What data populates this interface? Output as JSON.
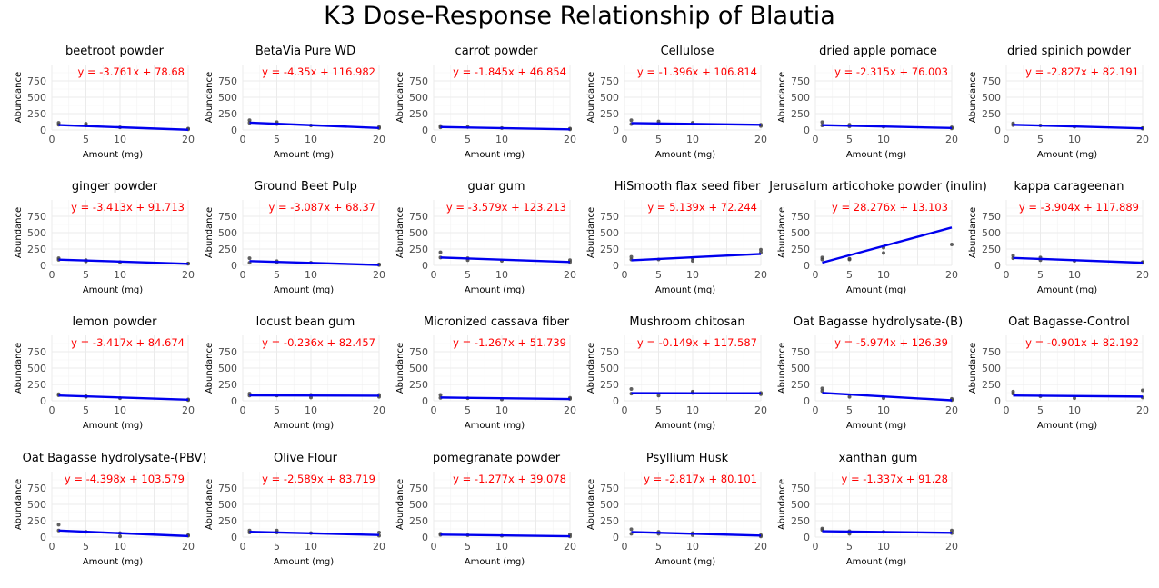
{
  "title": "K3 Dose-Response Relationship of Blautia",
  "chart_data": {
    "type": "scatter",
    "title": "K3 Dose-Response Relationship of Blautia",
    "xlabel": "Amount (mg)",
    "ylabel": "Abundance",
    "xlim": [
      0,
      20
    ],
    "ylim": [
      0,
      1000
    ],
    "xticks": [
      0,
      5,
      10,
      15,
      20
    ],
    "xtick_labels": [
      "0",
      "5",
      "10",
      "",
      "20"
    ],
    "yticks": [
      0,
      250,
      500,
      750
    ],
    "ytick_labels": [
      "0",
      "250",
      "500",
      "750"
    ],
    "grid": true,
    "colors": {
      "points": "#444444",
      "fit_line": "#0000ee",
      "equation": "#ff0000",
      "grid": "#ebebeb"
    },
    "panels": [
      {
        "name": "beetroot powder",
        "equation": "y = -3.761x + 78.68",
        "slope": -3.761,
        "intercept": 78.68,
        "points": [
          [
            1,
            110
          ],
          [
            1,
            80
          ],
          [
            5,
            95
          ],
          [
            5,
            70
          ],
          [
            10,
            40
          ],
          [
            20,
            10
          ],
          [
            20,
            20
          ]
        ]
      },
      {
        "name": "BetaVia Pure WD",
        "equation": "y = -4.35x + 116.982",
        "slope": -4.35,
        "intercept": 116.982,
        "points": [
          [
            1,
            150
          ],
          [
            1,
            110
          ],
          [
            5,
            120
          ],
          [
            5,
            90
          ],
          [
            10,
            70
          ],
          [
            20,
            30
          ],
          [
            20,
            45
          ]
        ]
      },
      {
        "name": "carrot powder",
        "equation": "y = -1.845x + 46.854",
        "slope": -1.845,
        "intercept": 46.854,
        "points": [
          [
            1,
            60
          ],
          [
            1,
            40
          ],
          [
            5,
            45
          ],
          [
            10,
            30
          ],
          [
            20,
            10
          ],
          [
            20,
            20
          ]
        ]
      },
      {
        "name": "Cellulose",
        "equation": "y = -1.396x + 106.814",
        "slope": -1.396,
        "intercept": 106.814,
        "points": [
          [
            1,
            150
          ],
          [
            1,
            90
          ],
          [
            5,
            130
          ],
          [
            5,
            95
          ],
          [
            10,
            110
          ],
          [
            20,
            80
          ],
          [
            20,
            60
          ]
        ]
      },
      {
        "name": "dried apple pomace",
        "equation": "y = -2.315x + 76.003",
        "slope": -2.315,
        "intercept": 76.003,
        "points": [
          [
            1,
            120
          ],
          [
            1,
            70
          ],
          [
            5,
            80
          ],
          [
            5,
            55
          ],
          [
            10,
            50
          ],
          [
            20,
            40
          ],
          [
            20,
            25
          ]
        ]
      },
      {
        "name": "dried spinich powder",
        "equation": "y = -2.827x + 82.191",
        "slope": -2.827,
        "intercept": 82.191,
        "points": [
          [
            1,
            100
          ],
          [
            1,
            75
          ],
          [
            5,
            70
          ],
          [
            10,
            50
          ],
          [
            20,
            30
          ],
          [
            20,
            20
          ]
        ]
      },
      {
        "name": "ginger powder",
        "equation": "y = -3.413x + 91.713",
        "slope": -3.413,
        "intercept": 91.713,
        "points": [
          [
            1,
            110
          ],
          [
            1,
            85
          ],
          [
            5,
            80
          ],
          [
            5,
            60
          ],
          [
            10,
            50
          ],
          [
            20,
            25
          ],
          [
            20,
            30
          ]
        ]
      },
      {
        "name": "Ground Beet Pulp",
        "equation": "y = -3.087x + 68.37",
        "slope": -3.087,
        "intercept": 68.37,
        "points": [
          [
            1,
            110
          ],
          [
            1,
            40
          ],
          [
            5,
            65
          ],
          [
            5,
            45
          ],
          [
            10,
            40
          ],
          [
            20,
            15
          ],
          [
            20,
            5
          ]
        ]
      },
      {
        "name": "guar gum",
        "equation": "y = -3.579x + 123.213",
        "slope": -3.579,
        "intercept": 123.213,
        "points": [
          [
            1,
            200
          ],
          [
            1,
            120
          ],
          [
            5,
            110
          ],
          [
            5,
            80
          ],
          [
            10,
            70
          ],
          [
            20,
            50
          ],
          [
            20,
            80
          ]
        ]
      },
      {
        "name": "HiSmooth flax seed fiber",
        "equation": "y = 5.139x + 72.244",
        "slope": 5.139,
        "intercept": 72.244,
        "points": [
          [
            1,
            130
          ],
          [
            1,
            90
          ],
          [
            5,
            90
          ],
          [
            10,
            110
          ],
          [
            10,
            70
          ],
          [
            20,
            240
          ],
          [
            20,
            200
          ]
        ]
      },
      {
        "name": "Jerusalum articohoke powder (inulin)",
        "equation": "y = 28.276x + 13.103",
        "slope": 28.276,
        "intercept": 13.103,
        "points": [
          [
            1,
            120
          ],
          [
            1,
            90
          ],
          [
            5,
            100
          ],
          [
            5,
            90
          ],
          [
            10,
            270
          ],
          [
            10,
            190
          ],
          [
            20,
            320
          ]
        ]
      },
      {
        "name": "kappa carageenan",
        "equation": "y = -3.904x + 117.889",
        "slope": -3.904,
        "intercept": 117.889,
        "points": [
          [
            1,
            150
          ],
          [
            1,
            110
          ],
          [
            5,
            120
          ],
          [
            5,
            80
          ],
          [
            10,
            70
          ],
          [
            20,
            50
          ],
          [
            20,
            40
          ]
        ]
      },
      {
        "name": "lemon powder",
        "equation": "y = -3.417x + 84.674",
        "slope": -3.417,
        "intercept": 84.674,
        "points": [
          [
            1,
            100
          ],
          [
            1,
            85
          ],
          [
            5,
            70
          ],
          [
            5,
            60
          ],
          [
            10,
            40
          ],
          [
            20,
            10
          ],
          [
            20,
            20
          ]
        ]
      },
      {
        "name": "locust bean gum",
        "equation": "y = -0.236x + 82.457",
        "slope": -0.236,
        "intercept": 82.457,
        "points": [
          [
            1,
            110
          ],
          [
            1,
            80
          ],
          [
            5,
            80
          ],
          [
            10,
            90
          ],
          [
            10,
            50
          ],
          [
            20,
            90
          ],
          [
            20,
            60
          ]
        ]
      },
      {
        "name": "Micronized cassava fiber",
        "equation": "y = -1.267x + 51.739",
        "slope": -1.267,
        "intercept": 51.739,
        "points": [
          [
            1,
            90
          ],
          [
            1,
            45
          ],
          [
            5,
            40
          ],
          [
            10,
            20
          ],
          [
            20,
            30
          ],
          [
            20,
            45
          ]
        ]
      },
      {
        "name": "Mushroom chitosan",
        "equation": "y = -0.149x + 117.587",
        "slope": -0.149,
        "intercept": 117.587,
        "points": [
          [
            1,
            180
          ],
          [
            1,
            110
          ],
          [
            5,
            80
          ],
          [
            10,
            140
          ],
          [
            10,
            120
          ],
          [
            20,
            100
          ],
          [
            20,
            120
          ]
        ]
      },
      {
        "name": "Oat Bagasse hydrolysate-(B)",
        "equation": "y = -5.974x + 126.39",
        "slope": -5.974,
        "intercept": 126.39,
        "points": [
          [
            1,
            190
          ],
          [
            1,
            150
          ],
          [
            5,
            60
          ],
          [
            10,
            40
          ],
          [
            20,
            10
          ],
          [
            20,
            30
          ]
        ]
      },
      {
        "name": "Oat Bagasse-Control",
        "equation": "y = -0.901x + 82.192",
        "slope": -0.901,
        "intercept": 82.192,
        "points": [
          [
            1,
            140
          ],
          [
            1,
            110
          ],
          [
            5,
            70
          ],
          [
            10,
            40
          ],
          [
            20,
            160
          ],
          [
            20,
            50
          ]
        ]
      },
      {
        "name": "Oat Bagasse hydrolysate-(PBV)",
        "equation": "y = -4.398x + 103.579",
        "slope": -4.398,
        "intercept": 103.579,
        "points": [
          [
            1,
            190
          ],
          [
            1,
            100
          ],
          [
            5,
            80
          ],
          [
            10,
            60
          ],
          [
            10,
            10
          ],
          [
            20,
            20
          ],
          [
            20,
            30
          ]
        ]
      },
      {
        "name": "Olive Flour",
        "equation": "y = -2.589x + 83.719",
        "slope": -2.589,
        "intercept": 83.719,
        "points": [
          [
            1,
            100
          ],
          [
            1,
            70
          ],
          [
            5,
            100
          ],
          [
            5,
            70
          ],
          [
            10,
            60
          ],
          [
            20,
            70
          ],
          [
            20,
            20
          ]
        ]
      },
      {
        "name": "pomegranate powder",
        "equation": "y = -1.277x + 39.078",
        "slope": -1.277,
        "intercept": 39.078,
        "points": [
          [
            1,
            50
          ],
          [
            1,
            35
          ],
          [
            5,
            30
          ],
          [
            10,
            20
          ],
          [
            20,
            10
          ],
          [
            20,
            40
          ]
        ]
      },
      {
        "name": "Psyllium Husk",
        "equation": "y = -2.817x + 80.101",
        "slope": -2.817,
        "intercept": 80.101,
        "points": [
          [
            1,
            120
          ],
          [
            1,
            50
          ],
          [
            5,
            80
          ],
          [
            5,
            50
          ],
          [
            10,
            60
          ],
          [
            10,
            30
          ],
          [
            20,
            10
          ],
          [
            20,
            30
          ]
        ]
      },
      {
        "name": "xanthan gum",
        "equation": "y = -1.337x + 91.28",
        "slope": -1.337,
        "intercept": 91.28,
        "points": [
          [
            1,
            130
          ],
          [
            1,
            110
          ],
          [
            5,
            90
          ],
          [
            5,
            50
          ],
          [
            10,
            80
          ],
          [
            20,
            60
          ],
          [
            20,
            100
          ]
        ]
      }
    ]
  }
}
